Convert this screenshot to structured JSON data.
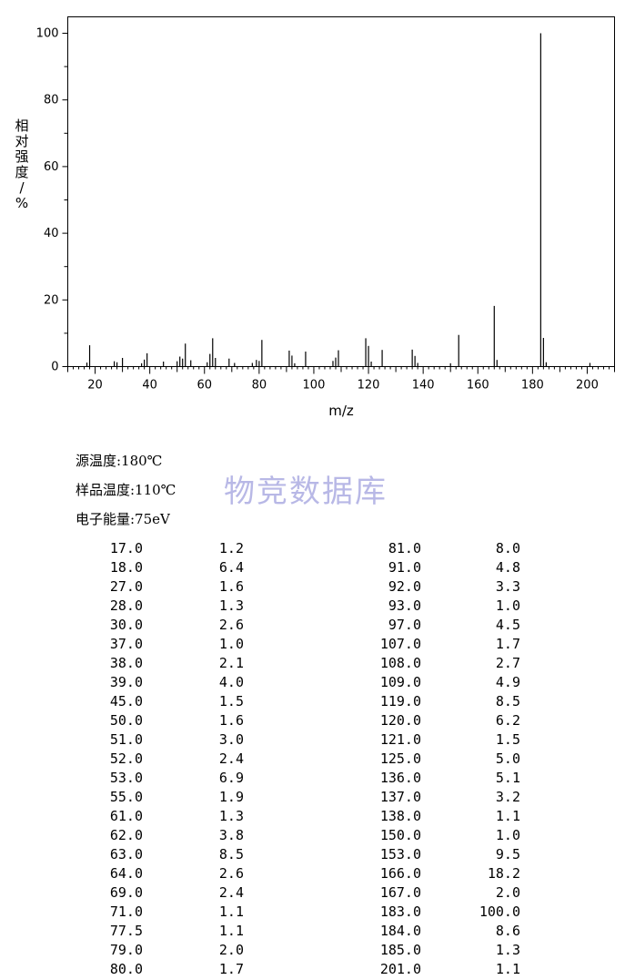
{
  "chart_data": {
    "type": "bar",
    "title": "",
    "xlabel": "m/z",
    "ylabel": "相对强度/%",
    "xlim": [
      10,
      210
    ],
    "ylim": [
      0,
      105
    ],
    "x_ticks": [
      20,
      40,
      60,
      80,
      100,
      120,
      140,
      160,
      180,
      200
    ],
    "y_ticks": [
      0,
      20,
      40,
      60,
      80,
      100
    ],
    "grid": false,
    "x": [
      17.0,
      18.0,
      27.0,
      28.0,
      30.0,
      37.0,
      38.0,
      39.0,
      45.0,
      50.0,
      51.0,
      52.0,
      53.0,
      55.0,
      61.0,
      62.0,
      63.0,
      64.0,
      69.0,
      71.0,
      77.5,
      79.0,
      80.0,
      81.0,
      91.0,
      92.0,
      93.0,
      97.0,
      107.0,
      108.0,
      109.0,
      119.0,
      120.0,
      121.0,
      125.0,
      136.0,
      137.0,
      138.0,
      150.0,
      153.0,
      166.0,
      167.0,
      183.0,
      184.0,
      185.0,
      201.0
    ],
    "values": [
      1.2,
      6.4,
      1.6,
      1.3,
      2.6,
      1.0,
      2.1,
      4.0,
      1.5,
      1.6,
      3.0,
      2.4,
      6.9,
      1.9,
      1.3,
      3.8,
      8.5,
      2.6,
      2.4,
      1.1,
      1.1,
      2.0,
      1.7,
      8.0,
      4.8,
      3.3,
      1.0,
      4.5,
      1.7,
      2.7,
      4.9,
      8.5,
      6.2,
      1.5,
      5.0,
      5.1,
      3.2,
      1.1,
      1.0,
      9.5,
      18.2,
      2.0,
      100.0,
      8.6,
      1.3,
      1.1
    ]
  },
  "conditions": {
    "source_temp": "源温度:180℃",
    "sample_temp": "样品温度:110℃",
    "electron_energy": "电子能量:75eV"
  },
  "watermark": "物竞数据库",
  "peak_table": [
    [
      "17.0",
      "1.2",
      "81.0",
      "8.0"
    ],
    [
      "18.0",
      "6.4",
      "91.0",
      "4.8"
    ],
    [
      "27.0",
      "1.6",
      "92.0",
      "3.3"
    ],
    [
      "28.0",
      "1.3",
      "93.0",
      "1.0"
    ],
    [
      "30.0",
      "2.6",
      "97.0",
      "4.5"
    ],
    [
      "37.0",
      "1.0",
      "107.0",
      "1.7"
    ],
    [
      "38.0",
      "2.1",
      "108.0",
      "2.7"
    ],
    [
      "39.0",
      "4.0",
      "109.0",
      "4.9"
    ],
    [
      "45.0",
      "1.5",
      "119.0",
      "8.5"
    ],
    [
      "50.0",
      "1.6",
      "120.0",
      "6.2"
    ],
    [
      "51.0",
      "3.0",
      "121.0",
      "1.5"
    ],
    [
      "52.0",
      "2.4",
      "125.0",
      "5.0"
    ],
    [
      "53.0",
      "6.9",
      "136.0",
      "5.1"
    ],
    [
      "55.0",
      "1.9",
      "137.0",
      "3.2"
    ],
    [
      "61.0",
      "1.3",
      "138.0",
      "1.1"
    ],
    [
      "62.0",
      "3.8",
      "150.0",
      "1.0"
    ],
    [
      "63.0",
      "8.5",
      "153.0",
      "9.5"
    ],
    [
      "64.0",
      "2.6",
      "166.0",
      "18.2"
    ],
    [
      "69.0",
      "2.4",
      "167.0",
      "2.0"
    ],
    [
      "71.0",
      "1.1",
      "183.0",
      "100.0"
    ],
    [
      "77.5",
      "1.1",
      "184.0",
      "8.6"
    ],
    [
      "79.0",
      "2.0",
      "185.0",
      "1.3"
    ],
    [
      "80.0",
      "1.7",
      "201.0",
      "1.1"
    ]
  ]
}
